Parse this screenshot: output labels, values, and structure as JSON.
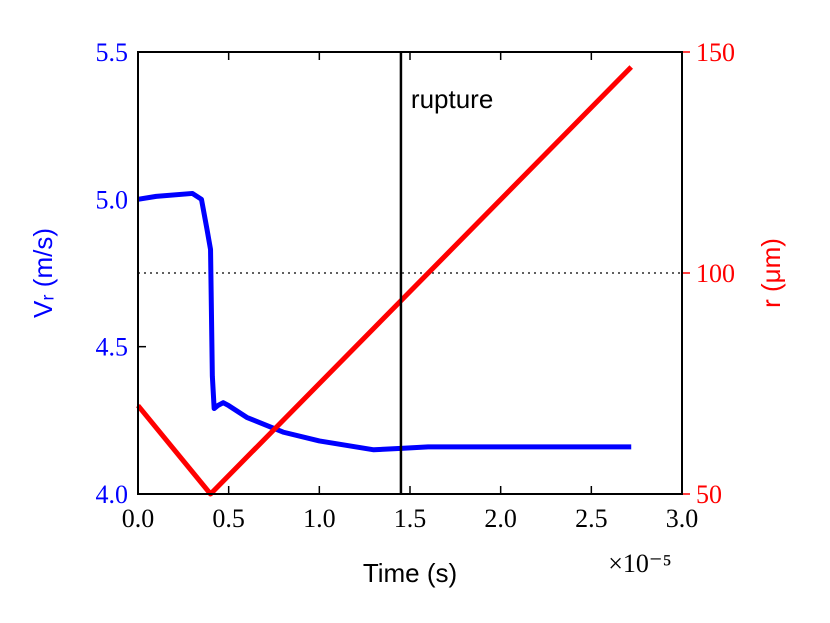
{
  "chart_data": {
    "type": "line",
    "xlabel": "Time (s)",
    "x_multiplier": "×10⁻⁵",
    "ylabel": "Vᵣ (m/s)",
    "y2label": "r (μm)",
    "xlim": [
      0,
      3
    ],
    "xticks": [
      {
        "value": 0,
        "label": "0.0"
      },
      0.5,
      {
        "value": 1,
        "label": "1.0"
      },
      1.5,
      {
        "value": 2,
        "label": "2.0"
      },
      2.5,
      {
        "value": 3,
        "label": "3.0"
      }
    ],
    "ylim": [
      4,
      5.5
    ],
    "yticks": [
      {
        "value": 4,
        "label": "4.0"
      },
      4.5,
      {
        "value": 5,
        "label": "5.0"
      },
      5.5
    ],
    "y2lim": [
      50,
      150
    ],
    "y2ticks": [
      50,
      100,
      150
    ],
    "series": [
      {
        "name": "Vr",
        "color": "#0000ff",
        "axis": "y",
        "x": [
          0,
          0.1,
          0.3,
          0.35,
          0.38,
          0.4,
          0.41,
          0.42,
          0.44,
          0.47,
          0.5,
          0.6,
          0.8,
          1.0,
          1.3,
          1.45,
          1.6,
          2.0,
          2.72
        ],
        "values": [
          5.0,
          5.01,
          5.02,
          5.0,
          4.9,
          4.83,
          4.4,
          4.29,
          4.3,
          4.31,
          4.3,
          4.26,
          4.21,
          4.18,
          4.15,
          4.155,
          4.16,
          4.16,
          4.16
        ]
      },
      {
        "name": "r",
        "color": "#ff0000",
        "axis": "y2",
        "x": [
          0,
          0.4,
          2.72
        ],
        "values": [
          70,
          50,
          146.6
        ]
      }
    ],
    "vline": {
      "value": 1.45,
      "label": "rupture"
    },
    "hline": {
      "value": 100,
      "axis": "y2"
    }
  }
}
